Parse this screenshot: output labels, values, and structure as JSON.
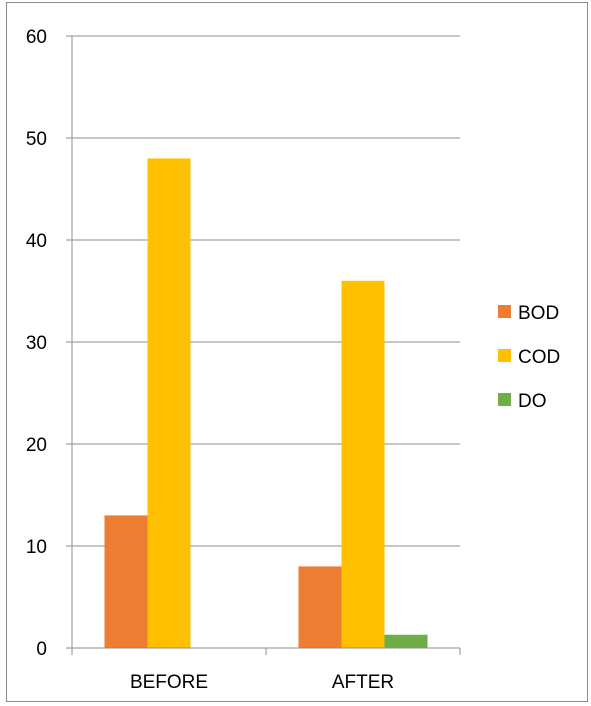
{
  "chart_data": {
    "type": "bar",
    "title": "",
    "xlabel": "",
    "ylabel": "",
    "categories": [
      "BEFORE",
      "AFTER"
    ],
    "series": [
      {
        "name": "BOD",
        "color": "#ED7D31",
        "values": [
          13,
          8
        ]
      },
      {
        "name": "COD",
        "color": "#FFC000",
        "values": [
          48,
          36
        ]
      },
      {
        "name": "DO",
        "color": "#70AD47",
        "values": [
          0,
          1.3
        ]
      }
    ],
    "ylim": [
      0,
      60
    ],
    "yticks": [
      "0",
      "10",
      "20",
      "30",
      "40",
      "50",
      "60"
    ],
    "grid": true,
    "legend_position": "right"
  }
}
